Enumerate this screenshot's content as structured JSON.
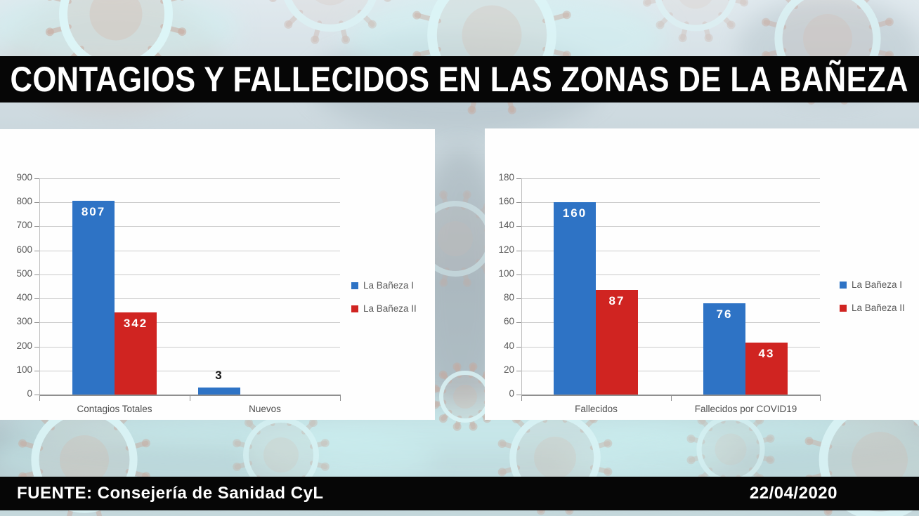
{
  "title": "CONTAGIOS Y FALLECIDOS EN LAS ZONAS DE LA BAÑEZA",
  "footer": {
    "source": "FUENTE: Consejería de Sanidad CyL",
    "date": "22/04/2020"
  },
  "colors": {
    "series1": "#2E73C5",
    "series2": "#D02421",
    "band": "#060606",
    "panel": "#FEFEFE",
    "grid": "#CBCBCB",
    "axis_text": "#595959"
  },
  "chart_data": [
    {
      "type": "bar",
      "categories": [
        "Contagios Totales",
        "Nuevos"
      ],
      "series": [
        {
          "name": "La Bañeza I",
          "color_key": "series1",
          "values": [
            807,
            3
          ]
        },
        {
          "name": "La Bañeza II",
          "color_key": "series2",
          "values": [
            342,
            null
          ]
        }
      ],
      "ylim": [
        0,
        900
      ],
      "ystep": 100,
      "yticks": [
        0,
        100,
        200,
        300,
        400,
        500,
        600,
        700,
        800,
        900
      ],
      "grid": true,
      "legend_position": "right"
    },
    {
      "type": "bar",
      "categories": [
        "Fallecidos",
        "Fallecidos por COVID19"
      ],
      "series": [
        {
          "name": "La Bañeza I",
          "color_key": "series1",
          "values": [
            160,
            76
          ]
        },
        {
          "name": "La Bañeza II",
          "color_key": "series2",
          "values": [
            87,
            43
          ]
        }
      ],
      "ylim": [
        0,
        180
      ],
      "ystep": 20,
      "yticks": [
        0,
        20,
        40,
        60,
        80,
        100,
        120,
        140,
        160,
        180
      ],
      "grid": true,
      "legend_position": "right"
    }
  ]
}
